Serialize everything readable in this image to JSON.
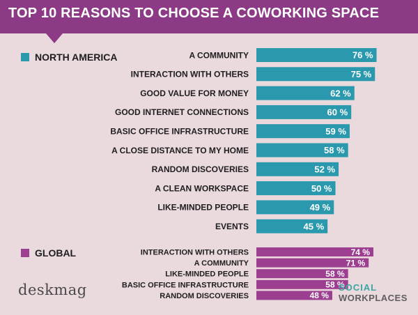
{
  "title": "TOP 10 REASONS TO CHOOSE A COWORKING SPACE",
  "colors": {
    "header": "#8d3a86",
    "north_america": "#2a99ae",
    "global": "#9c3f91",
    "background": "#ead9dd"
  },
  "legend": {
    "north_america": "NORTH AMERICA",
    "global": "GLOBAL"
  },
  "branding": {
    "left": "deskmag",
    "right_line1": "SOCIAL",
    "right_line2": "WORKPLACES"
  },
  "chart_data": {
    "type": "bar",
    "orientation": "horizontal",
    "title": "TOP 10 REASONS TO CHOOSE A COWORKING SPACE",
    "value_suffix": " %",
    "series": [
      {
        "name": "NORTH AMERICA",
        "categories": [
          "A COMMUNITY",
          "INTERACTION WITH OTHERS",
          "GOOD VALUE FOR MONEY",
          "GOOD INTERNET CONNECTIONS",
          "BASIC OFFICE INFRASTRUCTURE",
          "A CLOSE DISTANCE TO MY HOME",
          "RANDOM DISCOVERIES",
          "A CLEAN WORKSPACE",
          "LIKE-MINDED PEOPLE",
          "EVENTS"
        ],
        "values": [
          76,
          75,
          62,
          60,
          59,
          58,
          52,
          50,
          49,
          45
        ]
      },
      {
        "name": "GLOBAL",
        "categories": [
          "INTERACTION WITH OTHERS",
          "A COMMUNITY",
          "LIKE-MINDED PEOPLE",
          "BASIC OFFICE INFRASTRUCTURE",
          "RANDOM DISCOVERIES"
        ],
        "values": [
          74,
          71,
          58,
          58,
          48
        ]
      }
    ]
  }
}
